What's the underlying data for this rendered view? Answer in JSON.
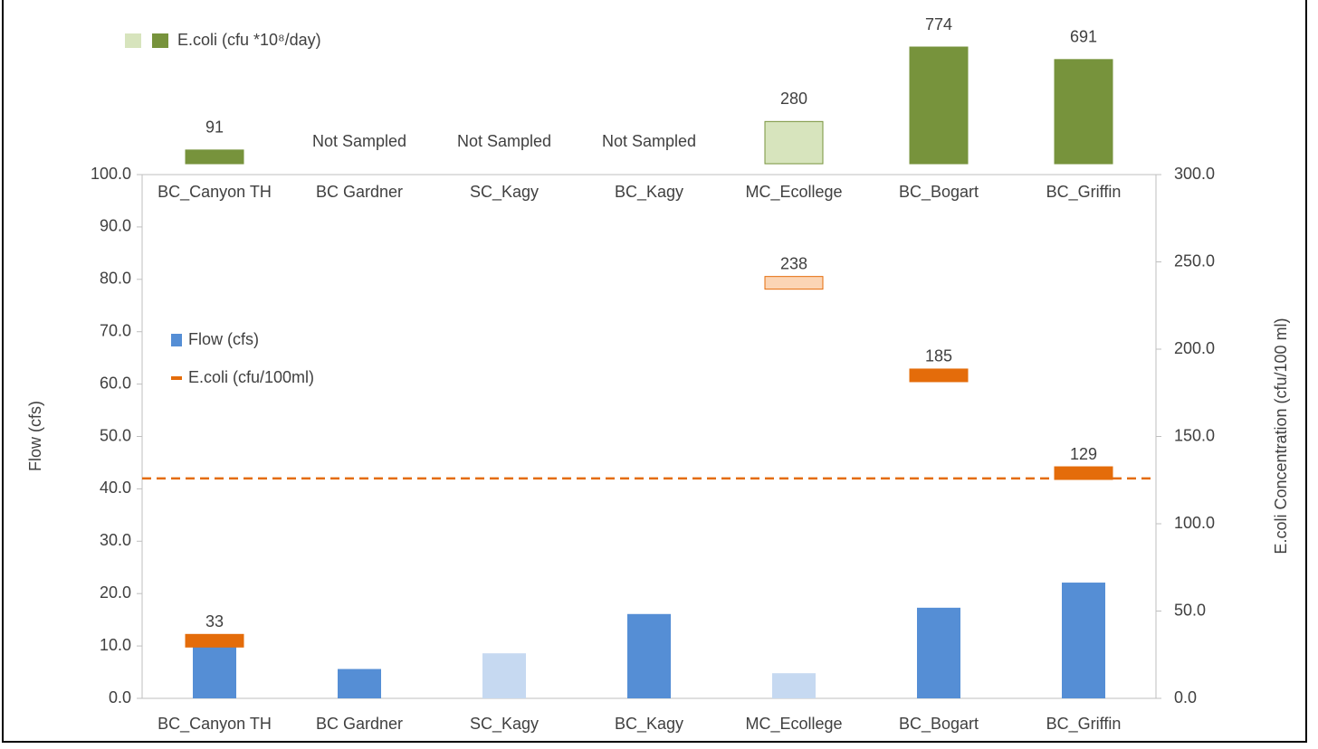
{
  "chart_data": [
    {
      "type": "bar",
      "categories": [
        "BC_Canyon TH",
        "BC Gardner",
        "SC_Kagy",
        "BC_Kagy",
        "MC_Ecollege",
        "BC_Bogart",
        "BC_Griffin"
      ],
      "series": [
        {
          "name": "E.coli (cfu *10⁸/day)",
          "color": "#77933c",
          "light_color": "#d7e4bd",
          "colors": [
            "#77933c",
            "#77933c",
            "#77933c",
            "#77933c",
            "#d7e4bd",
            "#77933c",
            "#77933c"
          ],
          "values": [
            91,
            null,
            null,
            null,
            280,
            774,
            691
          ],
          "value_labels": [
            "91",
            "Not Sampled",
            "Not Sampled",
            "Not Sampled",
            "280",
            "774",
            "691"
          ]
        }
      ]
    },
    {
      "type": "combo",
      "categories": [
        "BC_Canyon TH",
        "BC Gardner",
        "SC_Kagy",
        "BC_Kagy",
        "MC_Ecollege",
        "BC_Bogart",
        "BC_Griffin"
      ],
      "ylabel": "Flow (cfs)",
      "y2label": "E.coli Concentration (cfu/100 ml)",
      "ylim": [
        0,
        100
      ],
      "yticks": [
        {
          "value": 0,
          "label": "0.0"
        },
        {
          "value": 10,
          "label": "10.0"
        },
        {
          "value": 20,
          "label": "20.0"
        },
        {
          "value": 30,
          "label": "30.0"
        },
        {
          "value": 40,
          "label": "40.0"
        },
        {
          "value": 50,
          "label": "50.0"
        },
        {
          "value": 60,
          "label": "60.0"
        },
        {
          "value": 70,
          "label": "70.0"
        },
        {
          "value": 80,
          "label": "80.0"
        },
        {
          "value": 90,
          "label": "90.0"
        },
        {
          "value": 100,
          "label": "100.0"
        }
      ],
      "y2lim": [
        0,
        300
      ],
      "y2ticks": [
        {
          "value": 0,
          "label": "0.0"
        },
        {
          "value": 50,
          "label": "50.0"
        },
        {
          "value": 100,
          "label": "100.0"
        },
        {
          "value": 150,
          "label": "150.0"
        },
        {
          "value": 200,
          "label": "200.0"
        },
        {
          "value": 250,
          "label": "250.0"
        },
        {
          "value": 300,
          "label": "300.0"
        }
      ],
      "series": [
        {
          "name": "Flow (cfs)",
          "kind": "bar",
          "color": "#558ed5",
          "colors": [
            "#558ed5",
            "#558ed5",
            "#c6d9f1",
            "#558ed5",
            "#c6d9f1",
            "#558ed5",
            "#558ed5"
          ],
          "values": [
            10.3,
            5.6,
            8.6,
            16.1,
            4.8,
            17.3,
            22.1
          ]
        },
        {
          "name": "E.coli (cfu/100ml)",
          "kind": "marker",
          "axis": "y2",
          "color": "#e46c0a",
          "colors": [
            "#e46c0a",
            "#e46c0a",
            "#e46c0a",
            "#e46c0a",
            "#fbd5b5",
            "#e46c0a",
            "#e46c0a"
          ],
          "values": [
            33,
            null,
            null,
            null,
            238,
            185,
            129
          ]
        }
      ],
      "reference_line": {
        "value": 126,
        "axis": "y2",
        "color": "#e46c0a"
      }
    }
  ]
}
